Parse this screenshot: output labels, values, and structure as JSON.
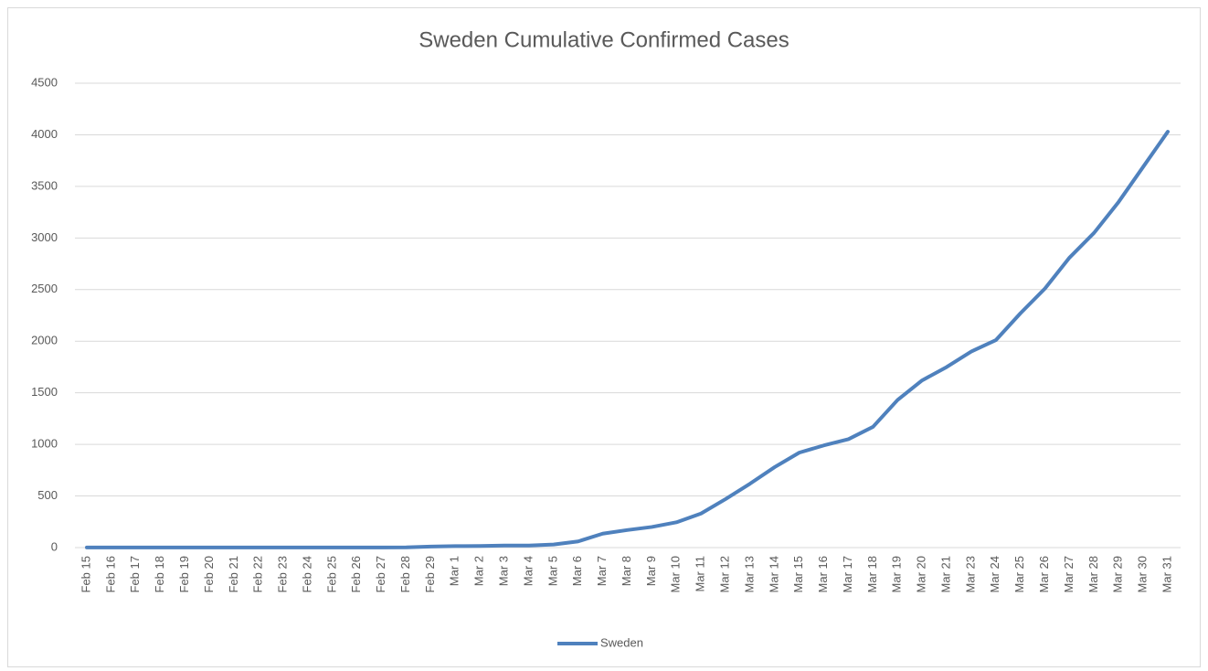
{
  "chart_data": {
    "type": "line",
    "title": "Sweden Cumulative Confirmed Cases",
    "categories": [
      "Feb 15",
      "Feb 16",
      "Feb 17",
      "Feb 18",
      "Feb 19",
      "Feb 20",
      "Feb 21",
      "Feb 22",
      "Feb 23",
      "Feb 24",
      "Feb 25",
      "Feb 26",
      "Feb 27",
      "Feb 28",
      "Feb 29",
      "Mar 1",
      "Mar 2",
      "Mar 3",
      "Mar 4",
      "Mar 5",
      "Mar 6",
      "Mar 7",
      "Mar 8",
      "Mar 9",
      "Mar 10",
      "Mar 11",
      "Mar 12",
      "Mar 13",
      "Mar 14",
      "Mar 15",
      "Mar 16",
      "Mar 17",
      "Mar 18",
      "Mar 19",
      "Mar 20",
      "Mar 21",
      "Mar 23",
      "Mar 24",
      "Mar 25",
      "Mar 26",
      "Mar 27",
      "Mar 28",
      "Mar 29",
      "Mar 30",
      "Mar 31"
    ],
    "series": [
      {
        "name": "Sweden",
        "color": "#4f81bd",
        "values": [
          1,
          1,
          1,
          1,
          1,
          1,
          1,
          1,
          1,
          1,
          1,
          1,
          1,
          2,
          10,
          14,
          15,
          20,
          20,
          30,
          60,
          135,
          170,
          200,
          245,
          330,
          470,
          620,
          780,
          920,
          990,
          1050,
          1170,
          1430,
          1620,
          1750,
          1900,
          2010,
          2270,
          2510,
          2810,
          3050,
          3350,
          3690,
          4030
        ]
      }
    ],
    "ylim": [
      0,
      4500
    ],
    "yticks": [
      0,
      500,
      1000,
      1500,
      2000,
      2500,
      3000,
      3500,
      4000,
      4500
    ],
    "grid": true,
    "legend": "bottom"
  }
}
